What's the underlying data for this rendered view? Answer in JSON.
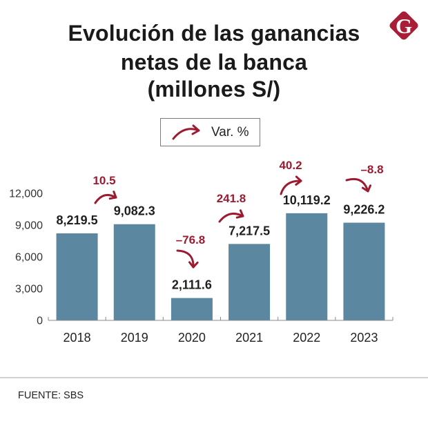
{
  "header": {
    "title_lines": [
      "Evolución de las ganancias",
      "netas de la banca",
      "(millones S/)"
    ],
    "logo": {
      "icon": "brand-logo-icon",
      "letter": "G",
      "color": "#a81e36"
    }
  },
  "legend": {
    "icon": "curved-arrow-icon",
    "label": "Var. %"
  },
  "chart_data": {
    "type": "bar",
    "title": "Evolución de las ganancias netas de la banca (millones S/)",
    "xlabel": "",
    "ylabel": "",
    "categories": [
      "2018",
      "2019",
      "2020",
      "2021",
      "2022",
      "2023"
    ],
    "values": [
      8219.5,
      9082.3,
      2111.6,
      7217.5,
      10119.2,
      9226.2
    ],
    "value_labels": [
      "8,219.5",
      "9,082.3",
      "2,111.6",
      "7,217.5",
      "10,119.2",
      "9,226.2"
    ],
    "series": [
      {
        "name": "Ganancias netas (millones S/)",
        "values": [
          8219.5,
          9082.3,
          2111.6,
          7217.5,
          10119.2,
          9226.2
        ]
      }
    ],
    "pct_change": {
      "name": "Var. %",
      "values": [
        10.5,
        -76.8,
        241.8,
        40.2,
        -8.8
      ],
      "labels": [
        "10.5",
        "–76.8",
        "241.8",
        "40.2",
        "–8.8"
      ]
    },
    "ylim": [
      0,
      12000
    ],
    "yticks": [
      0,
      3000,
      6000,
      9000,
      12000
    ],
    "ytick_labels": [
      "0",
      "3,000",
      "6,000",
      "9,000",
      "12,000"
    ],
    "grid": false,
    "legend_position": "top-center",
    "colors": {
      "bar": "#5b88a0",
      "change": "#9b1b30"
    }
  },
  "footer": {
    "source": "FUENTE: SBS"
  }
}
